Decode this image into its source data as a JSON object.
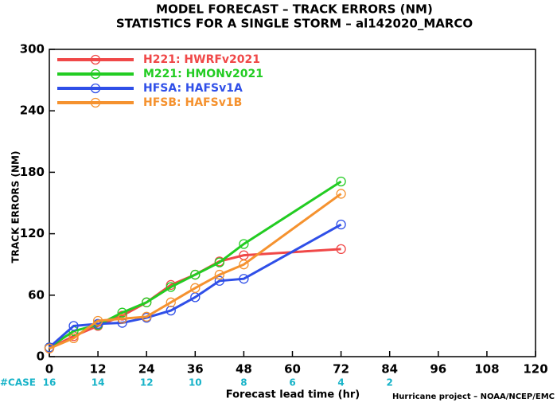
{
  "chart_data": {
    "type": "line",
    "title": "MODEL FORECAST – TRACK ERRORS (NM)",
    "subtitle": "STATISTICS FOR A SINGLE STORM – al142020_MARCO",
    "x_label": "Forecast lead time (hr)",
    "y_label": "TRACK ERRORS (NM)",
    "footer": "Hurricane project – NOAA/NCEP/EMC",
    "case_label": "#CASE",
    "cases": [
      16,
      14,
      12,
      10,
      8,
      6,
      4,
      2,
      null,
      null,
      null
    ],
    "cases_color": "#17b3c8",
    "x": [
      0,
      6,
      12,
      18,
      24,
      30,
      36,
      42,
      48,
      72
    ],
    "series": [
      {
        "name": "H221: HWRFv2021",
        "color": "#f04848",
        "values": [
          8,
          20,
          30,
          40,
          53,
          70,
          80,
          93,
          99,
          105
        ]
      },
      {
        "name": "M221: HMONv2021",
        "color": "#22cc22",
        "values": [
          9,
          25,
          31,
          43,
          53,
          68,
          80,
          92,
          110,
          171
        ]
      },
      {
        "name": "HFSA: HAFSv1A",
        "color": "#2f4fe8",
        "values": [
          9,
          30,
          32,
          33,
          38,
          45,
          58,
          74,
          76,
          129
        ]
      },
      {
        "name": "HFSB: HAFSv1B",
        "color": "#f5922f",
        "values": [
          8,
          18,
          35,
          37,
          39,
          53,
          67,
          80,
          90,
          159
        ]
      }
    ],
    "xlim": [
      0,
      120
    ],
    "xticks": [
      0,
      12,
      24,
      36,
      48,
      60,
      72,
      84,
      96,
      108,
      120
    ],
    "ylim": [
      0,
      300
    ],
    "yticks": [
      0,
      60,
      120,
      180,
      240,
      300
    ],
    "legend": "upper-left"
  }
}
